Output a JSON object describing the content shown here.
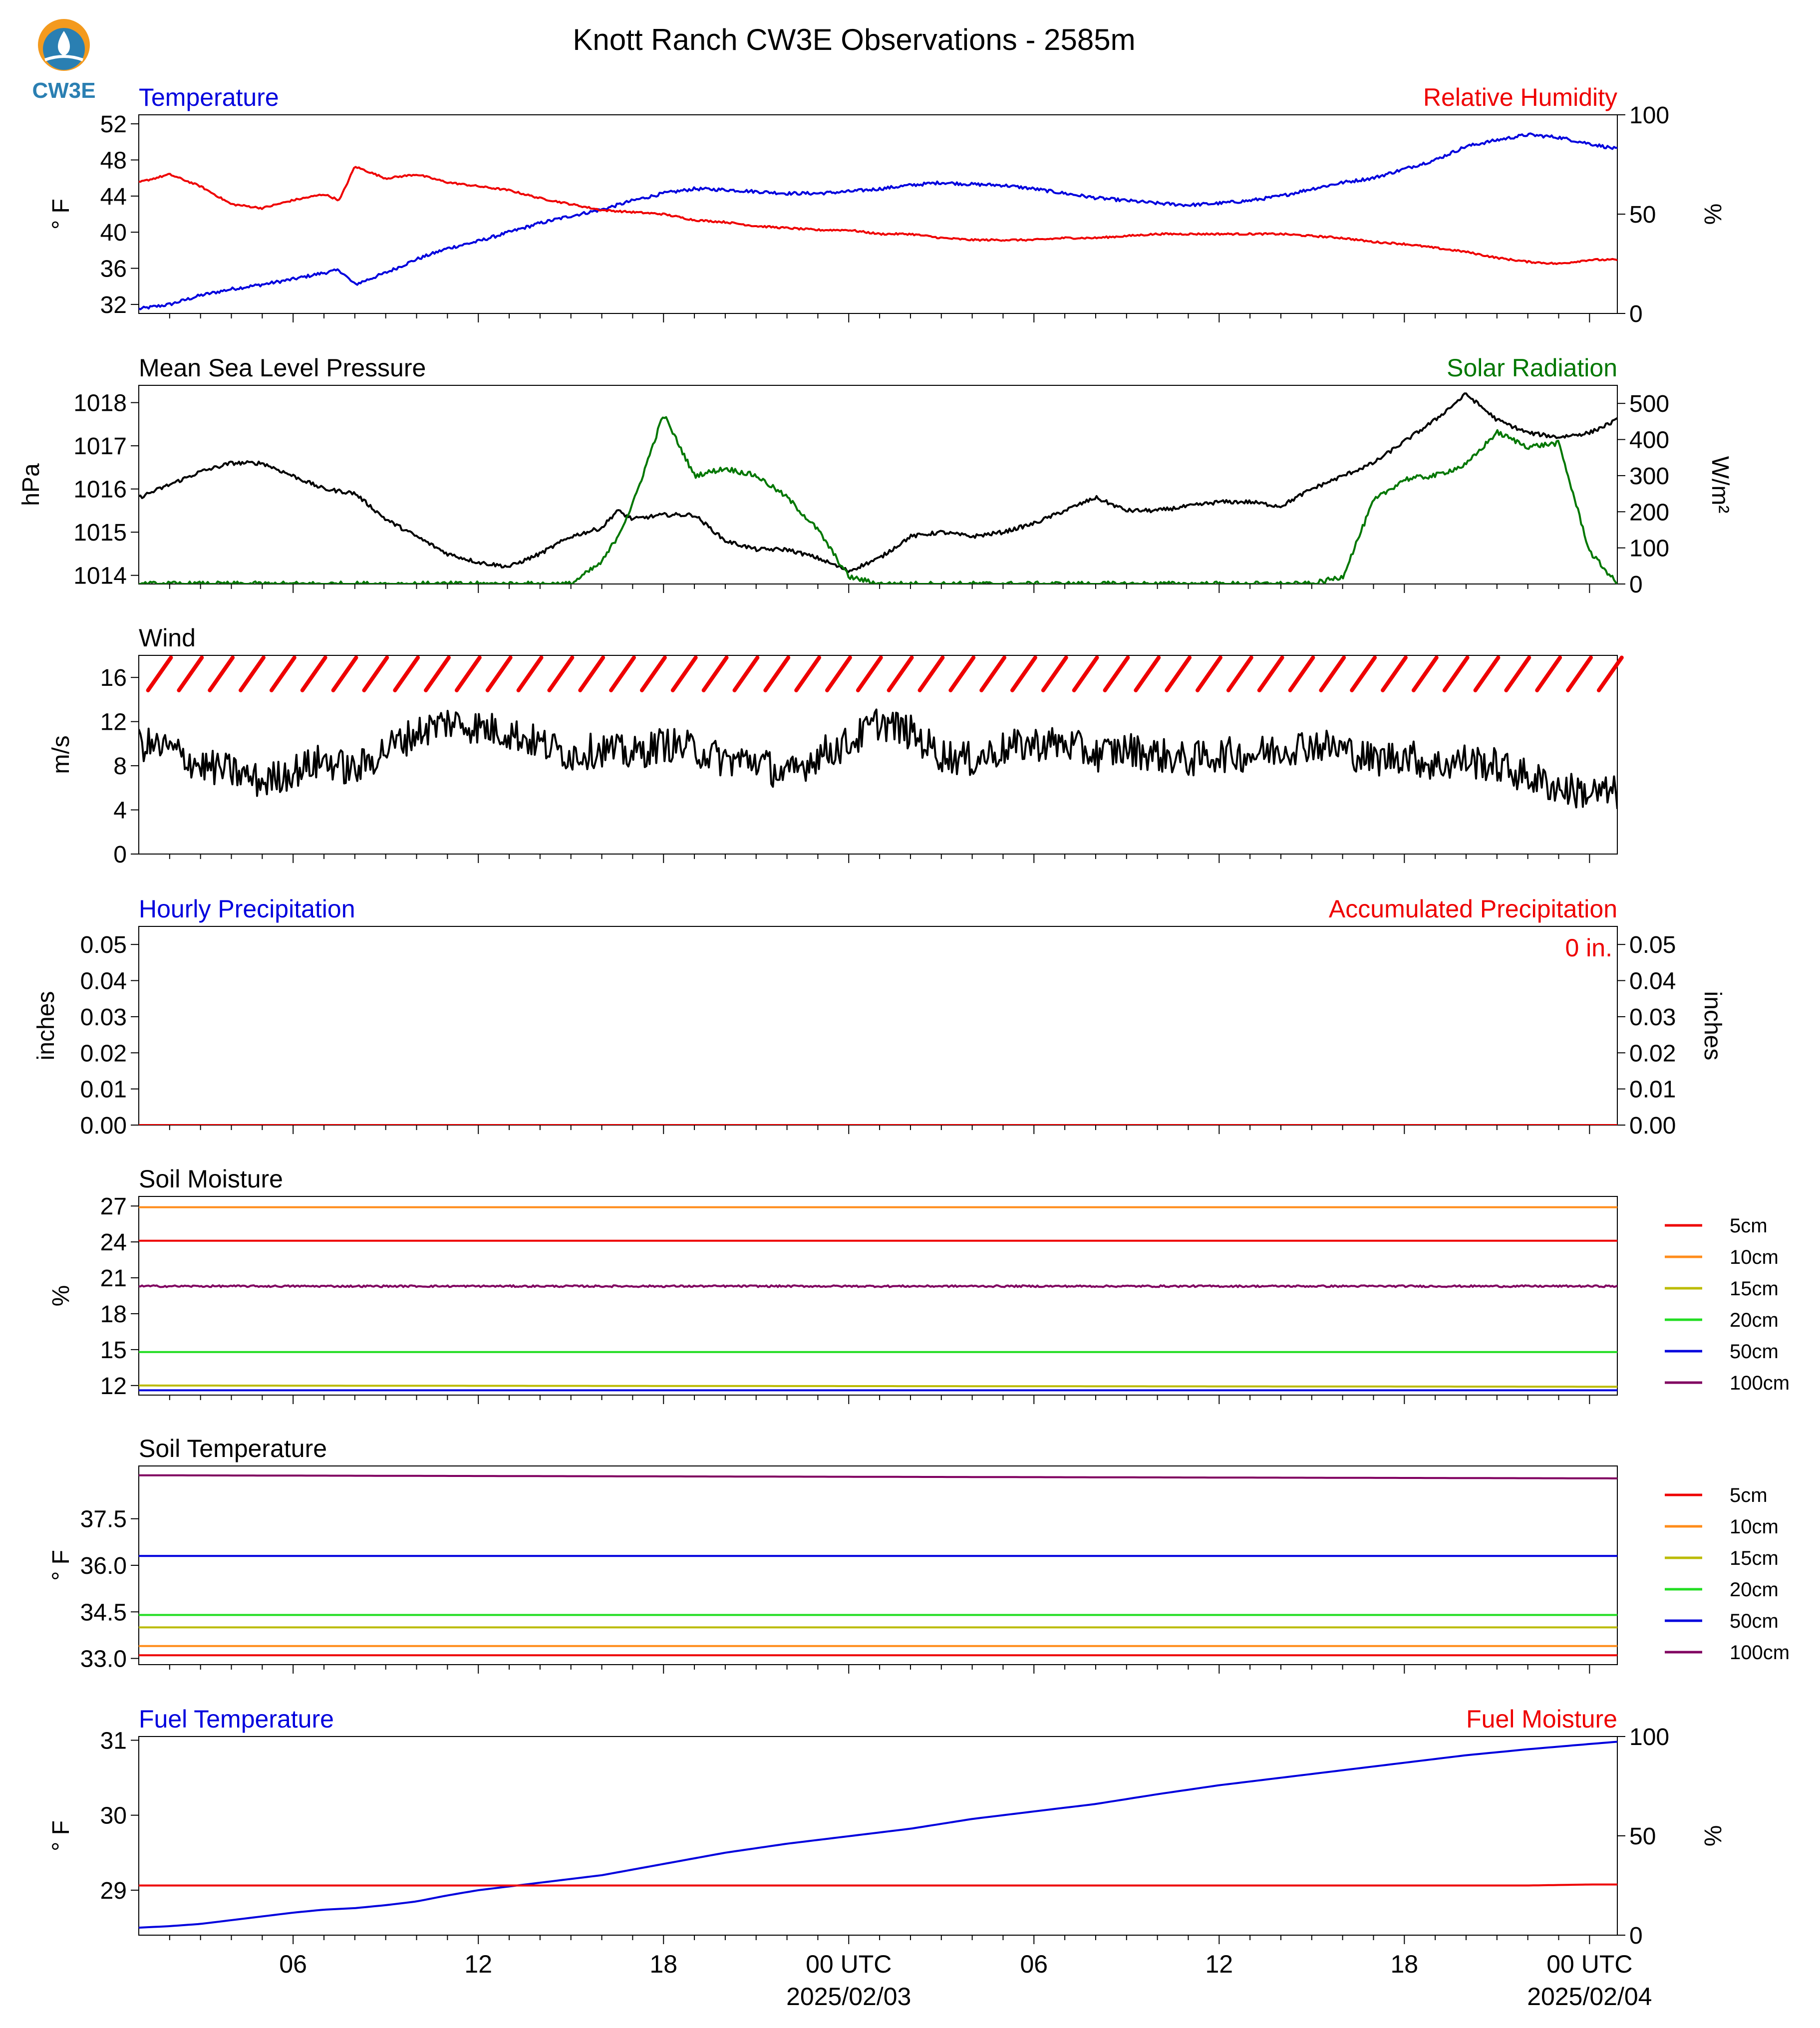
{
  "figure": {
    "title": "Knott Ranch CW3E Observations - 2585m",
    "logo_text": "CW3E",
    "colors": {
      "blue": "#0000dd",
      "red": "#ee0000",
      "green": "#007700",
      "black": "#000000",
      "logo": "#2a7fb2",
      "logo_orange": "#f39a1e"
    }
  },
  "time_axis": {
    "start_hour": 1,
    "end_hour": 48.9,
    "tick_labels": [
      {
        "hour": 6,
        "label": "06"
      },
      {
        "hour": 12,
        "label": "12"
      },
      {
        "hour": 18,
        "label": "18"
      },
      {
        "hour": 24,
        "label": "00 UTC",
        "sublabel": "2025/02/03"
      },
      {
        "hour": 30,
        "label": "06"
      },
      {
        "hour": 36,
        "label": "12"
      },
      {
        "hour": 42,
        "label": "18"
      },
      {
        "hour": 48,
        "label": "00 UTC",
        "sublabel": "2025/02/04"
      }
    ]
  },
  "chart_data": [
    {
      "id": "temperature_rh",
      "type": "line",
      "left_title": "Temperature",
      "right_title": "Relative Humidity",
      "ylabel": "° F",
      "ylabel_right": "%",
      "ylim": [
        31,
        53
      ],
      "ylim_right": [
        0,
        100
      ],
      "yticks": [
        "32",
        "36",
        "40",
        "44",
        "48",
        "52"
      ],
      "yticks_right": [
        "0",
        "50",
        "100"
      ],
      "x": [
        1,
        2,
        3,
        4,
        5,
        6,
        7,
        7.5,
        8,
        9,
        10,
        11,
        12,
        13,
        14,
        15,
        16,
        17,
        18,
        19,
        20,
        21,
        22,
        23,
        24,
        25,
        26,
        27,
        28,
        29,
        30,
        31,
        32,
        33,
        34,
        35,
        36,
        37,
        38,
        39,
        40,
        41,
        42,
        43,
        44,
        45,
        46,
        47,
        48,
        48.9
      ],
      "series": [
        {
          "name": "Temperature",
          "axis": "left",
          "color": "#0000dd",
          "values": [
            31.5,
            32.0,
            33.0,
            33.7,
            34.2,
            34.8,
            35.5,
            35.8,
            34.2,
            35.5,
            37.0,
            38.2,
            39.0,
            40.0,
            41.0,
            41.8,
            42.5,
            43.5,
            44.3,
            44.8,
            44.7,
            44.5,
            44.3,
            44.3,
            44.5,
            44.8,
            45.2,
            45.5,
            45.3,
            45.2,
            44.8,
            44.3,
            43.8,
            43.5,
            43.2,
            43.0,
            43.2,
            43.5,
            44.0,
            44.8,
            45.5,
            46.0,
            47.0,
            48.0,
            49.5,
            50.2,
            50.8,
            50.5,
            49.8,
            49.2
          ]
        },
        {
          "name": "Relative Humidity",
          "axis": "right",
          "color": "#ee0000",
          "values": [
            66,
            70,
            64,
            55,
            53,
            57,
            60,
            57,
            74,
            68,
            70,
            66,
            64,
            62,
            58,
            55,
            52,
            51,
            50,
            47,
            46,
            44,
            43,
            42,
            42,
            40,
            40,
            38,
            37,
            37,
            37,
            38,
            38,
            39,
            40,
            40,
            40,
            40,
            40,
            39,
            38,
            36,
            35,
            33,
            31,
            28,
            26,
            25,
            27,
            27
          ]
        }
      ]
    },
    {
      "id": "pressure_solar",
      "type": "line",
      "left_title": "Mean Sea Level Pressure",
      "right_title": "Solar Radiation",
      "ylabel": "hPa",
      "ylabel_right": "W/m²",
      "ylim": [
        1013.8,
        1018.4
      ],
      "ylim_right": [
        0,
        550
      ],
      "yticks": [
        "1014",
        "1015",
        "1016",
        "1017",
        "1018"
      ],
      "yticks_right": [
        "0",
        "100",
        "200",
        "300",
        "400",
        "500"
      ],
      "x": [
        1,
        2,
        3,
        4,
        5,
        6,
        7,
        8,
        9,
        10,
        11,
        12,
        13,
        14,
        15,
        16,
        16.5,
        17,
        18,
        19,
        20,
        21,
        22,
        23,
        24,
        25,
        26,
        27,
        28,
        29,
        30,
        31,
        32,
        33,
        34,
        35,
        36,
        37,
        38,
        39,
        40,
        41,
        42,
        43,
        44,
        45,
        46,
        47,
        48,
        48.9
      ],
      "series": [
        {
          "name": "Mean Sea Level Pressure",
          "axis": "left",
          "color": "#000000",
          "values": [
            1015.8,
            1016.1,
            1016.4,
            1016.6,
            1016.6,
            1016.3,
            1016.0,
            1015.9,
            1015.3,
            1014.9,
            1014.5,
            1014.3,
            1014.2,
            1014.5,
            1014.9,
            1015.1,
            1015.5,
            1015.3,
            1015.4,
            1015.4,
            1014.8,
            1014.6,
            1014.6,
            1014.4,
            1014.1,
            1014.4,
            1014.9,
            1015.0,
            1014.9,
            1015.0,
            1015.2,
            1015.5,
            1015.8,
            1015.5,
            1015.5,
            1015.6,
            1015.7,
            1015.7,
            1015.6,
            1016.0,
            1016.3,
            1016.6,
            1017.1,
            1017.6,
            1018.2,
            1017.6,
            1017.3,
            1017.2,
            1017.3,
            1017.6
          ]
        },
        {
          "name": "Solar Radiation",
          "axis": "right",
          "color": "#007700",
          "values": [
            0,
            0,
            0,
            0,
            0,
            0,
            0,
            0,
            0,
            0,
            0,
            0,
            0,
            0,
            0,
            60,
            130,
            220,
            470,
            300,
            320,
            300,
            240,
            150,
            20,
            0,
            0,
            0,
            0,
            0,
            0,
            0,
            0,
            0,
            0,
            0,
            0,
            0,
            0,
            0,
            20,
            230,
            290,
            300,
            330,
            420,
            380,
            390,
            90,
            0
          ]
        }
      ]
    },
    {
      "id": "wind",
      "type": "line",
      "left_title": "Wind",
      "ylabel": "m/s",
      "ylim": [
        0,
        18
      ],
      "yticks": [
        "0",
        "4",
        "8",
        "12",
        "16"
      ],
      "x": [
        1,
        2,
        3,
        4,
        5,
        6,
        7,
        8,
        9,
        10,
        11,
        12,
        13,
        14,
        15,
        16,
        17,
        18,
        19,
        20,
        21,
        22,
        23,
        24,
        25,
        26,
        27,
        28,
        29,
        30,
        31,
        32,
        33,
        34,
        35,
        36,
        37,
        38,
        39,
        40,
        41,
        42,
        43,
        44,
        45,
        46,
        47,
        48,
        48.9
      ],
      "series": [
        {
          "name": "Wind Speed",
          "axis": "left",
          "color": "#000000",
          "values": [
            10,
            9.5,
            8,
            7.5,
            6.5,
            7.5,
            8.5,
            7.5,
            9.5,
            11,
            12,
            11.5,
            11,
            10,
            9,
            9.5,
            9,
            10,
            9.5,
            8.5,
            8.5,
            7,
            9,
            10,
            12,
            11,
            9,
            8.5,
            9.5,
            10,
            10,
            9,
            9.5,
            9,
            8.5,
            9,
            9,
            9.5,
            10,
            9.5,
            8.5,
            9,
            8,
            8.5,
            8,
            7,
            6,
            5.5,
            5.5
          ]
        }
      ],
      "barb_direction_deg": 35,
      "barb_color": "#ee0000"
    },
    {
      "id": "precip",
      "type": "line",
      "left_title": "Hourly Precipitation",
      "right_title": "Accumulated Precipitation",
      "ylabel": "inches",
      "ylabel_right": "inches",
      "ylim": [
        0,
        0.055
      ],
      "yticks": [
        "0.00",
        "0.01",
        "0.02",
        "0.03",
        "0.04",
        "0.05"
      ],
      "yticks_right": [
        "0.00",
        "0.01",
        "0.02",
        "0.03",
        "0.04",
        "0.05"
      ],
      "annotation": "0 in.",
      "x": [
        1,
        48.9
      ],
      "series": [
        {
          "name": "Accumulated Precipitation",
          "axis": "left",
          "color": "#ee0000",
          "values": [
            0,
            0
          ]
        }
      ]
    },
    {
      "id": "soil_moisture",
      "type": "line",
      "left_title": "Soil Moisture",
      "ylabel": "%",
      "ylim": [
        11.2,
        27.8
      ],
      "yticks": [
        "12",
        "15",
        "18",
        "21",
        "24",
        "27"
      ],
      "x": [
        1,
        48.9
      ],
      "series": [
        {
          "name": "5cm",
          "color": "#ee0000",
          "values": [
            24.1,
            24.1
          ]
        },
        {
          "name": "10cm",
          "color": "#ff8c1a",
          "values": [
            26.9,
            26.9
          ]
        },
        {
          "name": "15cm",
          "color": "#bbbb00",
          "values": [
            12.0,
            11.9
          ]
        },
        {
          "name": "20cm",
          "color": "#22dd22",
          "values": [
            14.8,
            14.8
          ]
        },
        {
          "name": "50cm",
          "color": "#0000dd",
          "values": [
            11.6,
            11.6
          ]
        },
        {
          "name": "100cm",
          "color": "#800060",
          "values": [
            20.3,
            20.3
          ]
        }
      ]
    },
    {
      "id": "soil_temperature",
      "type": "line",
      "left_title": "Soil Temperature",
      "ylabel": "° F",
      "ylim": [
        32.8,
        39.2
      ],
      "yticks": [
        "33.0",
        "34.5",
        "36.0",
        "37.5"
      ],
      "x": [
        1,
        48.9
      ],
      "series": [
        {
          "name": "5cm",
          "color": "#ee0000",
          "values": [
            33.1,
            33.1
          ]
        },
        {
          "name": "10cm",
          "color": "#ff8c1a",
          "values": [
            33.4,
            33.4
          ]
        },
        {
          "name": "15cm",
          "color": "#bbbb00",
          "values": [
            34.0,
            34.0
          ]
        },
        {
          "name": "20cm",
          "color": "#22dd22",
          "values": [
            34.4,
            34.4
          ]
        },
        {
          "name": "50cm",
          "color": "#0000dd",
          "values": [
            36.3,
            36.3
          ]
        },
        {
          "name": "100cm",
          "color": "#800060",
          "values": [
            38.9,
            38.8
          ]
        }
      ]
    },
    {
      "id": "fuel",
      "type": "line",
      "left_title": "Fuel Temperature",
      "right_title": "Fuel Moisture",
      "ylabel": "° F",
      "ylabel_right": "%",
      "ylim": [
        28.4,
        31.05
      ],
      "ylim_right": [
        0,
        100
      ],
      "yticks": [
        "29",
        "30",
        "31"
      ],
      "yticks_right": [
        "0",
        "50",
        "100"
      ],
      "x": [
        1,
        2,
        3,
        4,
        5,
        6,
        7,
        8,
        9,
        10,
        11,
        12,
        13,
        14,
        16,
        18,
        20,
        22,
        24,
        26,
        28,
        30,
        32,
        34,
        36,
        38,
        40,
        42,
        44,
        46,
        48,
        48.9
      ],
      "series": [
        {
          "name": "Fuel Temperature",
          "axis": "left",
          "color": "#0000dd",
          "values": [
            28.5,
            28.52,
            28.55,
            28.6,
            28.65,
            28.7,
            28.74,
            28.76,
            28.8,
            28.85,
            28.93,
            29.0,
            29.05,
            29.1,
            29.2,
            29.35,
            29.5,
            29.62,
            29.72,
            29.82,
            29.95,
            30.05,
            30.15,
            30.28,
            30.4,
            30.5,
            30.6,
            30.7,
            30.8,
            30.88,
            30.95,
            30.98
          ]
        },
        {
          "name": "Fuel Moisture",
          "axis": "right",
          "color": "#ee0000",
          "values": [
            25,
            25,
            25,
            25,
            25,
            25,
            25,
            25,
            25,
            25,
            25,
            25,
            25,
            25,
            25,
            25,
            25,
            25,
            25,
            25,
            25,
            25,
            25,
            25,
            25,
            25,
            25,
            25,
            25,
            25,
            25.5,
            25.5
          ]
        }
      ]
    }
  ],
  "soil_legend": [
    "5cm",
    "10cm",
    "15cm",
    "20cm",
    "50cm",
    "100cm"
  ]
}
